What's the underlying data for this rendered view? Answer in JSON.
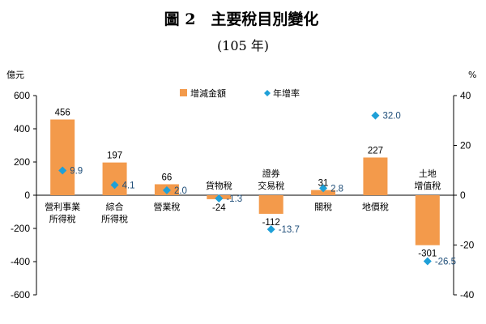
{
  "title": "圖 2　主要稅目別變化",
  "subtitle": "(105 年)",
  "colors": {
    "bar": "#F39A4B",
    "marker": "#1FA0D8",
    "axis": "#000000"
  },
  "chart_data": {
    "type": "bar",
    "categories": [
      [
        "營利事業",
        "所得稅"
      ],
      [
        "綜合",
        "所得稅"
      ],
      [
        "營業稅"
      ],
      [
        "貨物稅"
      ],
      [
        "證券",
        "交易稅"
      ],
      [
        "關稅"
      ],
      [
        "地價稅"
      ],
      [
        "土地",
        "增值稅"
      ]
    ],
    "series": [
      {
        "name": "增減金額",
        "type": "bar",
        "axis": "left",
        "values": [
          456,
          197,
          66,
          -24,
          -112,
          31,
          227,
          -301
        ],
        "labels": [
          "456",
          "197",
          "66",
          "-24",
          "-112",
          "31",
          "227",
          "-301"
        ]
      },
      {
        "name": "年增率",
        "type": "scatter",
        "marker": "diamond",
        "axis": "right",
        "values": [
          9.9,
          4.1,
          2.0,
          -1.3,
          -13.7,
          2.8,
          32.0,
          -26.5
        ],
        "labels": [
          "9.9",
          "4.1",
          "2.0",
          "-1.3",
          "-13.7",
          "2.8",
          "32.0",
          "-26.5"
        ]
      }
    ],
    "left_axis": {
      "unit": "億元",
      "ylim": [
        -600,
        600
      ],
      "ticks": [
        "600",
        "400",
        "200",
        "0",
        "-200",
        "-400",
        "-600"
      ]
    },
    "right_axis": {
      "unit": "%",
      "ylim": [
        -40,
        40
      ],
      "ticks": [
        "40",
        "20",
        "0",
        "-20",
        "-40"
      ]
    },
    "legend": {
      "placement": "top-center"
    },
    "grid": false
  }
}
